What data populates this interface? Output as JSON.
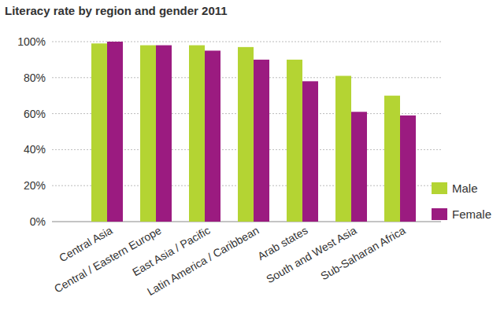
{
  "chart_data": {
    "type": "bar",
    "title": "Literacy rate by region and gender 2011",
    "categories": [
      "Central Asia",
      "Central / Eastern Europe",
      "East Asia / Pacific",
      "Latin America / Caribbean",
      "Arab states",
      "South and West Asia",
      "Sub-Saharan Africa"
    ],
    "series": [
      {
        "name": "Male",
        "color": "#b4d433",
        "values": [
          99,
          98,
          98,
          97,
          90,
          81,
          70
        ]
      },
      {
        "name": "Female",
        "color": "#9b1b80",
        "values": [
          100,
          98,
          95,
          90,
          78,
          61,
          59
        ]
      }
    ],
    "ylim": [
      0,
      100
    ],
    "yticks": [
      {
        "value": 0,
        "label": "0%"
      },
      {
        "value": 20,
        "label": "20%"
      },
      {
        "value": 40,
        "label": "40%"
      },
      {
        "value": 60,
        "label": "60%"
      },
      {
        "value": 80,
        "label": "80%"
      },
      {
        "value": 100,
        "label": "100%"
      }
    ],
    "grid": true,
    "legend": "right"
  }
}
